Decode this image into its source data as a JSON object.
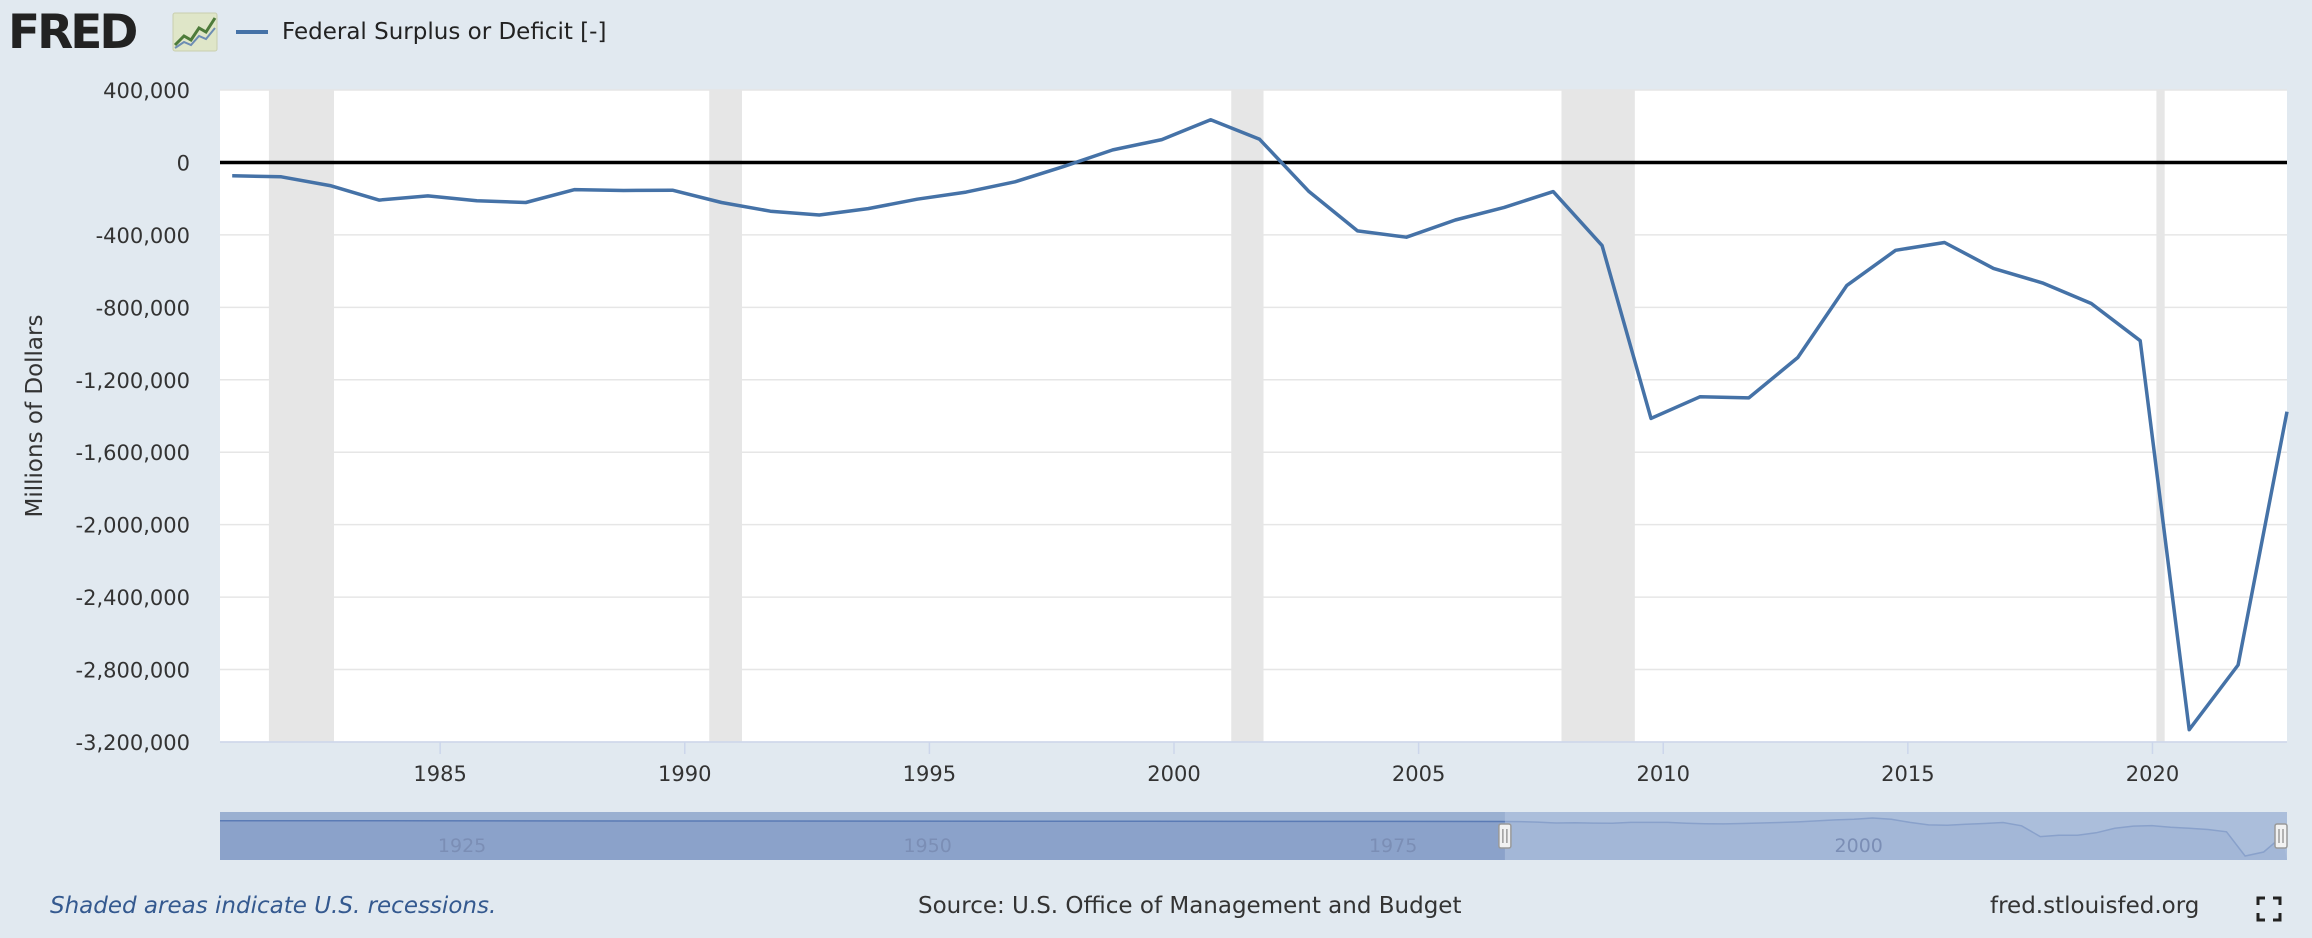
{
  "header": {
    "logo_text": "FRED",
    "legend_label": "Federal Surplus or Deficit [-]"
  },
  "colors": {
    "series": "#4572a7",
    "recession": "#e6e6e6",
    "background": "#e1e9f0",
    "navigator_fill": "#9ab0d1",
    "navigator_mask": "#c2d0e7"
  },
  "chart_data": {
    "type": "line",
    "ylabel": "Millions of Dollars",
    "y_ticks": [
      "400,000",
      "0",
      "-400,000",
      "-800,000",
      "-1,200,000",
      "-1,600,000",
      "-2,000,000",
      "-2,400,000",
      "-2,800,000",
      "-3,200,000"
    ],
    "y_tick_values": [
      400000,
      0,
      -400000,
      -800000,
      -1200000,
      -1600000,
      -2000000,
      -2400000,
      -2800000,
      -3200000
    ],
    "ylim": [
      -3200000,
      400000
    ],
    "xlim": [
      1980.5,
      2022.75
    ],
    "x_ticks": [
      "1985",
      "1990",
      "1995",
      "2000",
      "2005",
      "2010",
      "2015",
      "2020"
    ],
    "x_tick_values": [
      1985,
      1990,
      1995,
      2000,
      2005,
      2010,
      2015,
      2020
    ],
    "grid": true,
    "reference_line_y": 0,
    "recessions": [
      [
        1981.5,
        1982.83
      ],
      [
        1990.5,
        1991.17
      ],
      [
        2001.17,
        2001.83
      ],
      [
        2007.92,
        2009.42
      ],
      [
        2020.08,
        2020.25
      ]
    ],
    "series": [
      {
        "x": [
          1980.75,
          1981.75,
          1982.75,
          1983.75,
          1984.75,
          1985.75,
          1986.75,
          1987.75,
          1988.75,
          1989.75,
          1990.75,
          1991.75,
          1992.75,
          1993.75,
          1994.75,
          1995.75,
          1996.75,
          1997.75,
          1998.75,
          1999.75,
          2000.75,
          2001.75,
          2002.75,
          2003.75,
          2004.75,
          2005.75,
          2006.75,
          2007.75,
          2008.75,
          2009.75,
          2010.75,
          2011.75,
          2012.75,
          2013.75,
          2014.75,
          2015.75,
          2016.75,
          2017.75,
          2018.75,
          2019.75,
          2020.75,
          2021.75,
          2022.75
        ],
        "values": [
          -74000,
          -79000,
          -128000,
          -208000,
          -185000,
          -212000,
          -221000,
          -150000,
          -155000,
          -153000,
          -221000,
          -269000,
          -290000,
          -255000,
          -203000,
          -164000,
          -107000,
          -22000,
          69000,
          126000,
          236000,
          128000,
          -158000,
          -378000,
          -413000,
          -318000,
          -248000,
          -161000,
          -459000,
          -1413000,
          -1294000,
          -1300000,
          -1077000,
          -680000,
          -485000,
          -442000,
          -585000,
          -665000,
          -779000,
          -984000,
          -3132000,
          -2775000,
          -1376000
        ]
      }
    ]
  },
  "navigator": {
    "x_labels": [
      "1925",
      "1950",
      "1975",
      "2000"
    ],
    "x_label_values": [
      1925,
      1950,
      1975,
      2000
    ],
    "range": [
      1912,
      2023
    ],
    "selected": [
      1981,
      2023
    ]
  },
  "footer": {
    "recession_note": "Shaded areas indicate U.S. recessions.",
    "source": "Source: U.S. Office of Management and Budget",
    "site": "fred.stlouisfed.org"
  }
}
